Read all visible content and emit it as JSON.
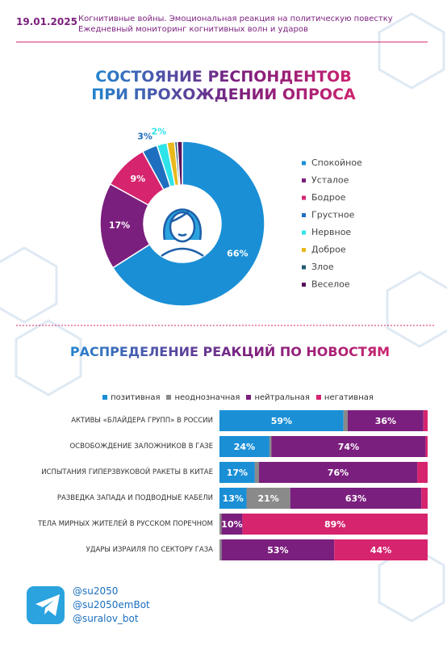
{
  "header": {
    "date": "19.01.2025",
    "line1": "Когнитивные войны. Эмоциональная реакция на политическую повестку",
    "line2": "Ежедневный мониторинг когнитивных волн и ударов"
  },
  "footer": {
    "handles": [
      "@su2050",
      "@su2050emBot",
      "@suralov_bot"
    ]
  },
  "chart_data": [
    {
      "type": "pie",
      "title": "СОСТОЯНИЕ РЕСПОНДЕНТОВ ПРИ ПРОХОЖДЕНИИ ОПРОСА",
      "categories": [
        "Спокойное",
        "Усталое",
        "Бодрое",
        "Грустное",
        "Нервное",
        "Доброе",
        "Злое",
        "Веселое"
      ],
      "values": [
        66,
        17,
        9,
        3,
        2,
        1.5,
        0.5,
        1
      ],
      "value_labels": [
        "66%",
        "17%",
        "9%",
        "3%",
        "2%",
        null,
        null,
        null
      ],
      "colors": [
        "#1a8fd6",
        "#7b1f7e",
        "#d6246e",
        "#1e6fbf",
        "#2ee3ea",
        "#e9b91c",
        "#1f5c74",
        "#5a0f5a"
      ]
    },
    {
      "type": "stacked-bar",
      "title": "РАСПРЕДЕЛЕНИЕ РЕАКЦИЙ ПО НОВОСТЯМ",
      "categories": [
        "АКТИВЫ «БЛАЙДЕРА ГРУПП» В РОССИИ",
        "ОСВОБОЖДЕНИЕ ЗАЛОЖНИКОВ В ГАЗЕ",
        "ИСПЫТАНИЯ ГИПЕРЗВУКОВОЙ РАКЕТЫ В КИТАЕ",
        "РАЗВЕДКА ЗАПАДА И ПОДВОДНЫЕ КАБЕЛИ",
        "ТЕЛА МИРНЫХ ЖИТЕЛЕЙ В РУССКОМ ПОРЕЧНОМ",
        "УДАРЫ ИЗРАИЛЯ ПО СЕКТОРУ ГАЗА"
      ],
      "series": [
        {
          "name": "позитивная",
          "color": "#1a8fd6",
          "values": [
            59,
            24,
            17,
            13,
            0,
            0
          ],
          "value_labels": [
            "59%",
            "24%",
            "17%",
            "13%",
            null,
            null
          ]
        },
        {
          "name": "неоднозначная",
          "color": "#8a8a8a",
          "values": [
            2,
            1,
            2,
            21,
            1,
            1
          ],
          "value_labels": [
            null,
            null,
            null,
            "21%",
            null,
            null
          ]
        },
        {
          "name": "нейтральная",
          "color": "#7b1f7e",
          "values": [
            36,
            74,
            76,
            63,
            10,
            53
          ],
          "value_labels": [
            "36%",
            "74%",
            "76%",
            "63%",
            "10%",
            "53%"
          ]
        },
        {
          "name": "негативная",
          "color": "#d6246e",
          "values": [
            2,
            1,
            5,
            3,
            89,
            44
          ],
          "value_labels": [
            null,
            null,
            null,
            null,
            "89%",
            "44%"
          ]
        }
      ]
    }
  ]
}
